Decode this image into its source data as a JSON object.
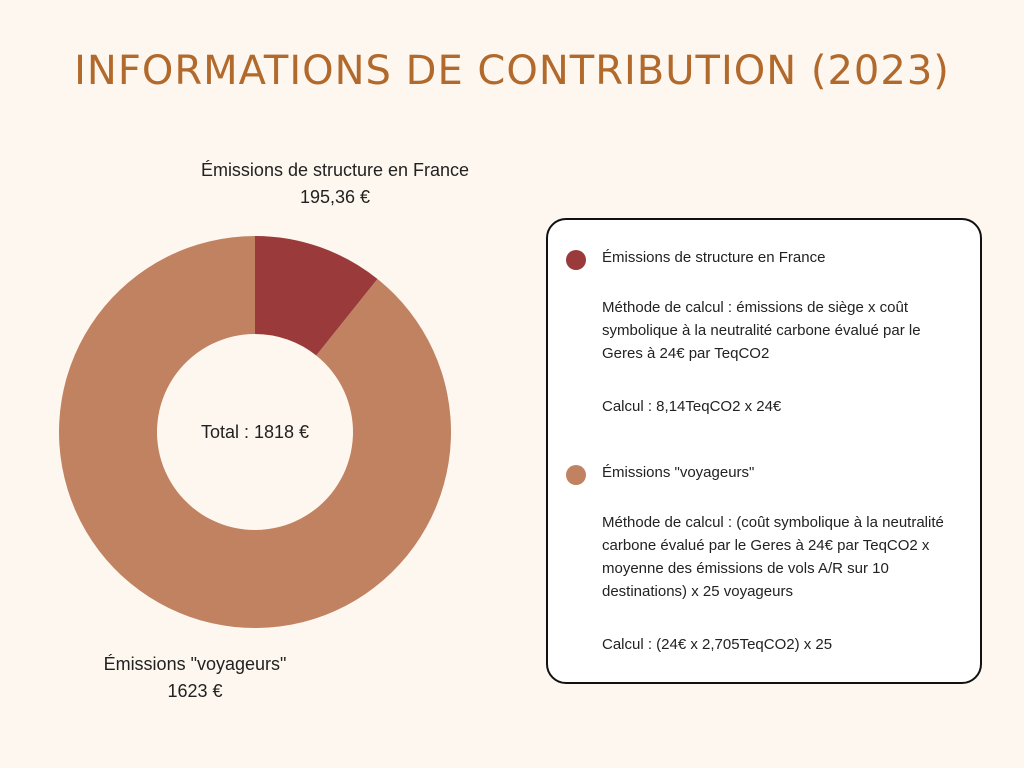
{
  "title": "INFORMATIONS DE CONTRIBUTION (2023)",
  "colors": {
    "structure": "#9b3a3a",
    "voyageurs": "#c08260",
    "title": "#b26a2c"
  },
  "chart_data": {
    "type": "pie",
    "donut": true,
    "center_label": "Total : 1818 €",
    "slices": [
      {
        "name": "Émissions de structure en France",
        "value": 195.36,
        "value_label": "195,36 €"
      },
      {
        "name": "Émissions \"voyageurs\"",
        "value": 1623,
        "value_label": "1623 €"
      }
    ]
  },
  "legend": [
    {
      "title": "Émissions de structure en France",
      "method": "Méthode de calcul : émissions de siège x coût symbolique à la neutralité carbone évalué par le Geres à 24€ par TeqCO2",
      "calc": "Calcul : 8,14TeqCO2 x 24€"
    },
    {
      "title": "Émissions \"voyageurs\"",
      "method": "Méthode de calcul : (coût symbolique à la neutralité carbone évalué par le Geres à 24€ par TeqCO2 x moyenne des émissions de vols A/R sur 10 destinations) x 25 voyageurs",
      "calc": "Calcul : (24€ x 2,705TeqCO2) x 25"
    }
  ]
}
